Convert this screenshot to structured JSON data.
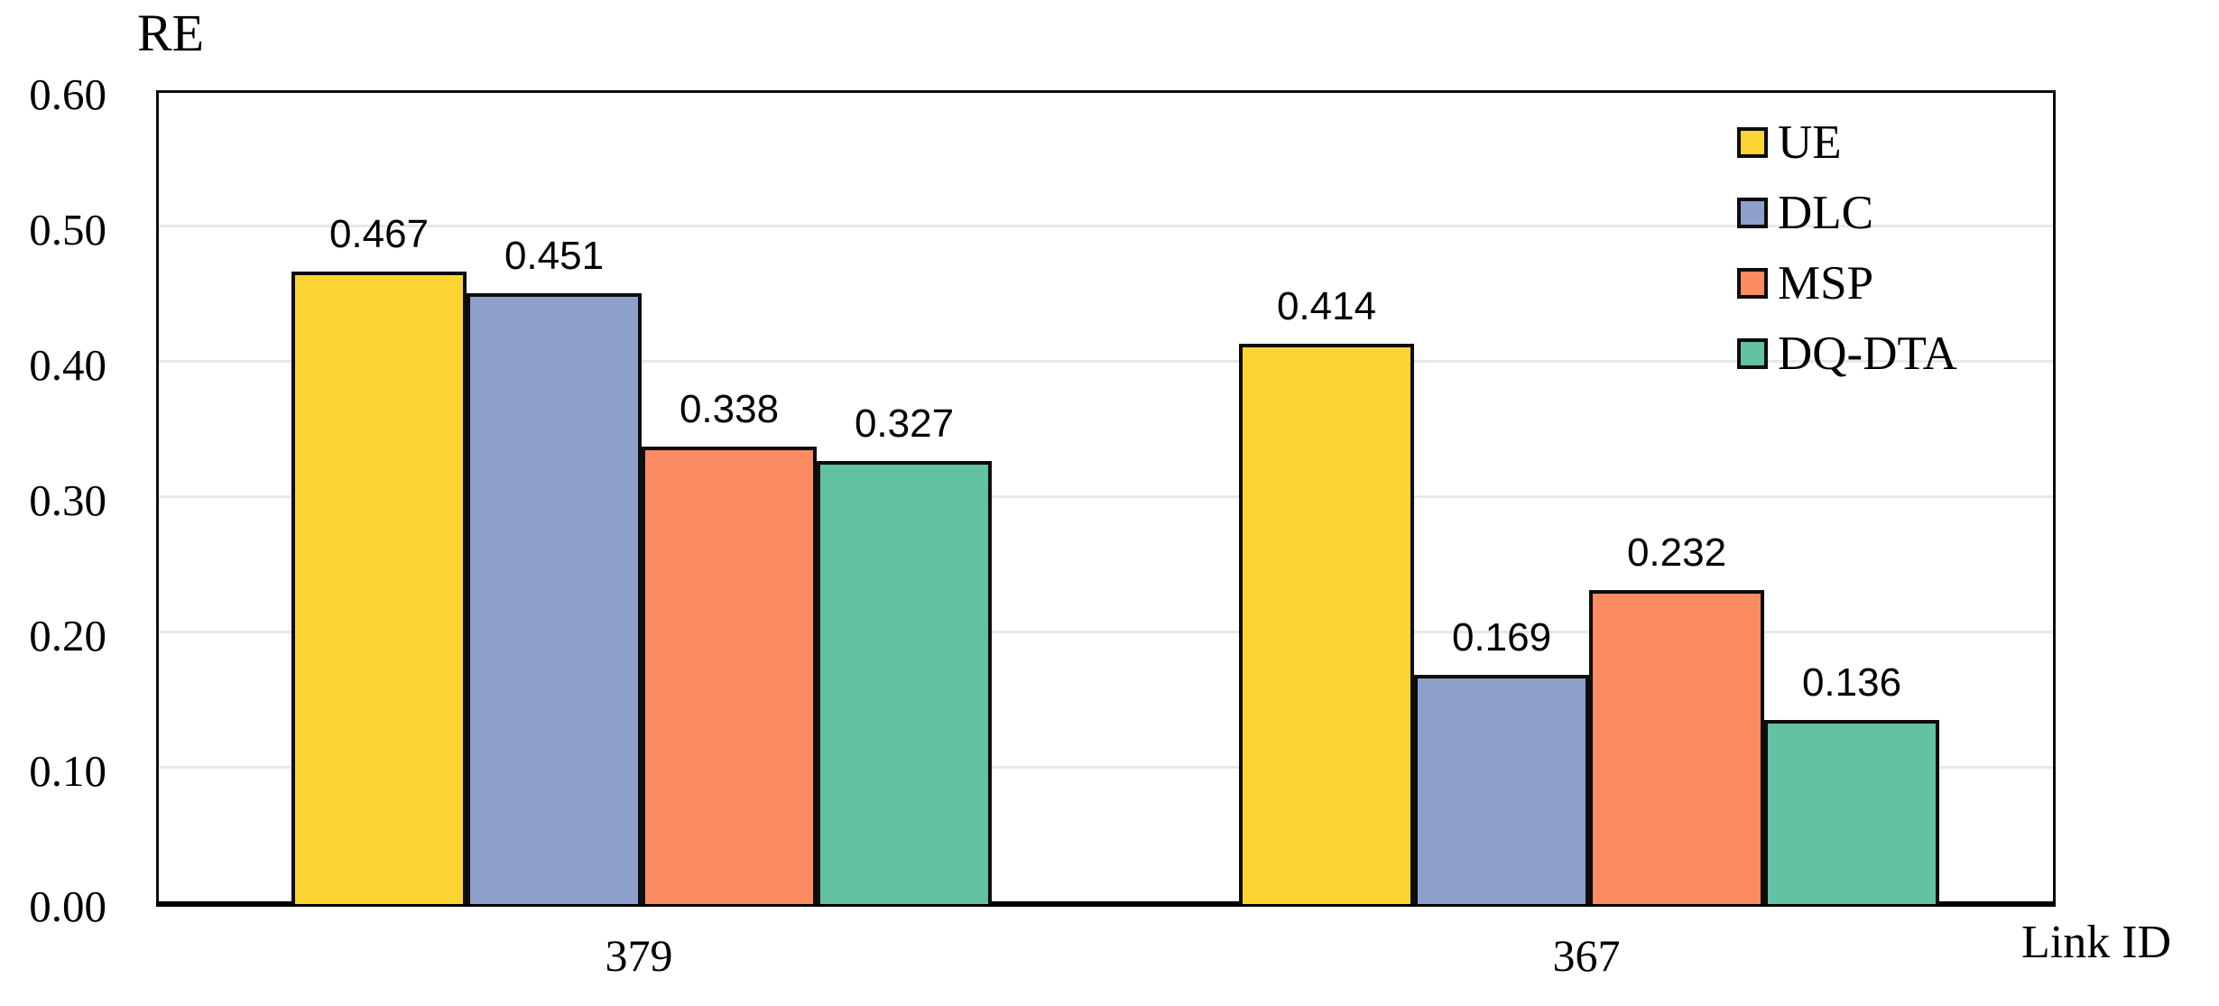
{
  "chart_data": {
    "type": "bar",
    "ylabel": "RE",
    "xlabel": "Link ID",
    "categories": [
      "379",
      "367"
    ],
    "series": [
      {
        "name": "UE",
        "color": "#FCD535",
        "values": [
          0.467,
          0.414
        ],
        "labels": [
          "0.467",
          "0.414"
        ]
      },
      {
        "name": "DLC",
        "color": "#8DA0CB",
        "values": [
          0.451,
          0.169
        ],
        "labels": [
          "0.451",
          "0.169"
        ]
      },
      {
        "name": "MSP",
        "color": "#FB8B61",
        "values": [
          0.338,
          0.232
        ],
        "labels": [
          "0.338",
          "0.232"
        ]
      },
      {
        "name": "DQ-DTA",
        "color": "#62C2A3",
        "values": [
          0.327,
          0.136
        ],
        "labels": [
          "0.327",
          "0.136"
        ]
      }
    ],
    "ylim": [
      0.0,
      0.6
    ],
    "ytick_labels": [
      "0.00",
      "0.10",
      "0.20",
      "0.30",
      "0.40",
      "0.50",
      "0.60"
    ],
    "grid": "horizontal",
    "legend_position": "top-right-inside",
    "gridline_color": "#E8E8E8",
    "axis_color": "#000000",
    "bar_border_color": "#0D0D0D"
  }
}
